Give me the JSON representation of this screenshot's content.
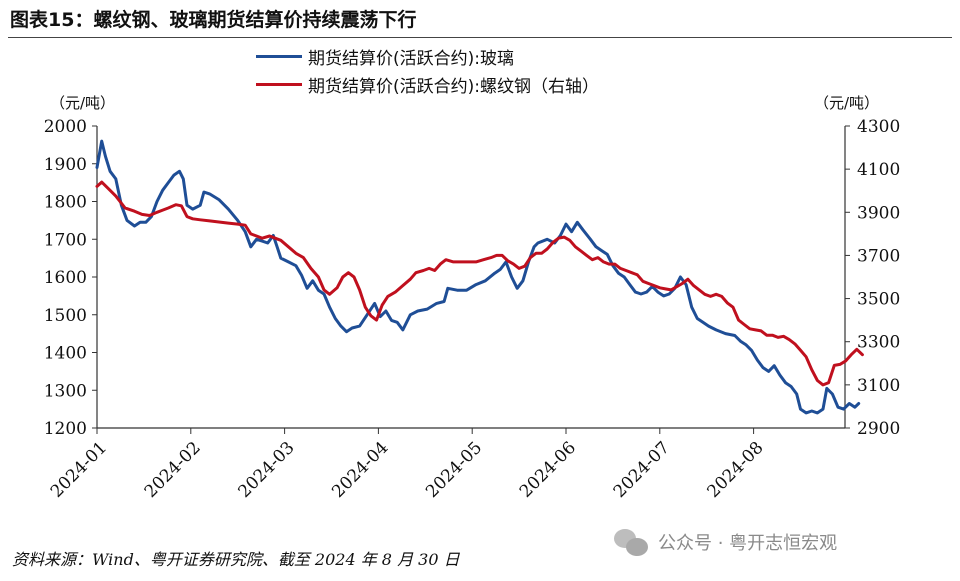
{
  "title": "图表15：螺纹钢、玻璃期货结算价持续震荡下行",
  "legend": {
    "glass": "期货结算价(活跃合约):玻璃",
    "rebar": "期货结算价(活跃合约):螺纹钢（右轴）"
  },
  "units": {
    "left": "（元/吨）",
    "right": "（元/吨）"
  },
  "source": "资料来源：Wind、粤开证券研究院、截至 2024 年 8 月 30 日",
  "watermark": "公众号 · 粤开志恒宏观",
  "colors": {
    "glass": "#1f4e96",
    "rebar": "#c0101e",
    "axis": "#333333"
  },
  "chart_data": {
    "type": "line",
    "x_ticks": [
      "2024-01",
      "2024-02",
      "2024-03",
      "2024-04",
      "2024-05",
      "2024-06",
      "2024-07",
      "2024-08"
    ],
    "x_range_months": [
      0,
      8
    ],
    "y_left": {
      "ticks": [
        1200,
        1300,
        1400,
        1500,
        1600,
        1700,
        1800,
        1900,
        2000
      ],
      "ylim": [
        1200,
        2000
      ]
    },
    "y_right": {
      "ticks": [
        2900,
        3100,
        3300,
        3500,
        3700,
        3900,
        4100,
        4300
      ],
      "ylim": [
        2900,
        4300
      ]
    },
    "series": [
      {
        "name": "期货结算价(活跃合约):玻璃",
        "axis": "left",
        "points": [
          [
            0.0,
            1890
          ],
          [
            0.05,
            1960
          ],
          [
            0.09,
            1920
          ],
          [
            0.14,
            1880
          ],
          [
            0.2,
            1860
          ],
          [
            0.26,
            1790
          ],
          [
            0.32,
            1750
          ],
          [
            0.4,
            1735
          ],
          [
            0.46,
            1745
          ],
          [
            0.52,
            1745
          ],
          [
            0.58,
            1760
          ],
          [
            0.64,
            1800
          ],
          [
            0.7,
            1830
          ],
          [
            0.76,
            1850
          ],
          [
            0.82,
            1870
          ],
          [
            0.88,
            1880
          ],
          [
            0.92,
            1860
          ],
          [
            0.96,
            1790
          ],
          [
            1.02,
            1780
          ],
          [
            1.1,
            1790
          ],
          [
            1.14,
            1825
          ],
          [
            1.2,
            1820
          ],
          [
            1.3,
            1805
          ],
          [
            1.4,
            1780
          ],
          [
            1.5,
            1750
          ],
          [
            1.58,
            1720
          ],
          [
            1.64,
            1680
          ],
          [
            1.7,
            1700
          ],
          [
            1.76,
            1695
          ],
          [
            1.82,
            1690
          ],
          [
            1.88,
            1710
          ],
          [
            1.92,
            1680
          ],
          [
            1.96,
            1650
          ],
          [
            2.04,
            1640
          ],
          [
            2.12,
            1630
          ],
          [
            2.18,
            1605
          ],
          [
            2.24,
            1570
          ],
          [
            2.3,
            1590
          ],
          [
            2.36,
            1565
          ],
          [
            2.42,
            1555
          ],
          [
            2.48,
            1520
          ],
          [
            2.54,
            1490
          ],
          [
            2.6,
            1470
          ],
          [
            2.66,
            1455
          ],
          [
            2.72,
            1465
          ],
          [
            2.8,
            1470
          ],
          [
            2.88,
            1500
          ],
          [
            2.96,
            1530
          ],
          [
            3.02,
            1495
          ],
          [
            3.08,
            1510
          ],
          [
            3.14,
            1485
          ],
          [
            3.2,
            1480
          ],
          [
            3.26,
            1460
          ],
          [
            3.34,
            1500
          ],
          [
            3.42,
            1510
          ],
          [
            3.52,
            1515
          ],
          [
            3.62,
            1530
          ],
          [
            3.7,
            1535
          ],
          [
            3.74,
            1570
          ],
          [
            3.84,
            1565
          ],
          [
            3.94,
            1565
          ],
          [
            4.04,
            1580
          ],
          [
            4.14,
            1590
          ],
          [
            4.24,
            1610
          ],
          [
            4.3,
            1620
          ],
          [
            4.36,
            1640
          ],
          [
            4.42,
            1600
          ],
          [
            4.48,
            1570
          ],
          [
            4.54,
            1590
          ],
          [
            4.6,
            1640
          ],
          [
            4.66,
            1680
          ],
          [
            4.7,
            1690
          ],
          [
            4.8,
            1700
          ],
          [
            4.88,
            1690
          ],
          [
            4.94,
            1710
          ],
          [
            5.0,
            1740
          ],
          [
            5.06,
            1720
          ],
          [
            5.12,
            1745
          ],
          [
            5.18,
            1725
          ],
          [
            5.26,
            1700
          ],
          [
            5.32,
            1680
          ],
          [
            5.38,
            1670
          ],
          [
            5.44,
            1660
          ],
          [
            5.5,
            1630
          ],
          [
            5.56,
            1610
          ],
          [
            5.62,
            1600
          ],
          [
            5.68,
            1580
          ],
          [
            5.74,
            1560
          ],
          [
            5.8,
            1555
          ],
          [
            5.86,
            1560
          ],
          [
            5.92,
            1575
          ],
          [
            5.98,
            1560
          ],
          [
            6.04,
            1550
          ],
          [
            6.1,
            1555
          ],
          [
            6.16,
            1570
          ],
          [
            6.22,
            1600
          ],
          [
            6.28,
            1580
          ],
          [
            6.34,
            1520
          ],
          [
            6.4,
            1490
          ],
          [
            6.46,
            1480
          ],
          [
            6.52,
            1470
          ],
          [
            6.6,
            1460
          ],
          [
            6.7,
            1450
          ],
          [
            6.8,
            1445
          ],
          [
            6.86,
            1430
          ],
          [
            6.92,
            1420
          ],
          [
            6.98,
            1405
          ],
          [
            7.04,
            1380
          ],
          [
            7.1,
            1360
          ],
          [
            7.16,
            1350
          ],
          [
            7.22,
            1365
          ],
          [
            7.28,
            1340
          ],
          [
            7.34,
            1320
          ],
          [
            7.4,
            1310
          ],
          [
            7.46,
            1290
          ],
          [
            7.5,
            1250
          ],
          [
            7.56,
            1240
          ],
          [
            7.62,
            1245
          ],
          [
            7.68,
            1240
          ],
          [
            7.74,
            1250
          ],
          [
            7.78,
            1305
          ],
          [
            7.84,
            1290
          ],
          [
            7.9,
            1255
          ],
          [
            7.96,
            1250
          ],
          [
            8.02,
            1265
          ],
          [
            8.08,
            1255
          ],
          [
            8.12,
            1265
          ]
        ]
      },
      {
        "name": "期货结算价(活跃合约):螺纹钢（右轴）",
        "axis": "right",
        "points": [
          [
            0.0,
            4020
          ],
          [
            0.05,
            4040
          ],
          [
            0.12,
            4010
          ],
          [
            0.2,
            3975
          ],
          [
            0.3,
            3920
          ],
          [
            0.4,
            3905
          ],
          [
            0.48,
            3890
          ],
          [
            0.56,
            3885
          ],
          [
            0.64,
            3900
          ],
          [
            0.7,
            3910
          ],
          [
            0.76,
            3920
          ],
          [
            0.84,
            3935
          ],
          [
            0.9,
            3930
          ],
          [
            0.96,
            3880
          ],
          [
            1.02,
            3870
          ],
          [
            1.1,
            3865
          ],
          [
            1.2,
            3860
          ],
          [
            1.3,
            3855
          ],
          [
            1.4,
            3850
          ],
          [
            1.5,
            3845
          ],
          [
            1.58,
            3840
          ],
          [
            1.64,
            3800
          ],
          [
            1.7,
            3790
          ],
          [
            1.76,
            3780
          ],
          [
            1.84,
            3790
          ],
          [
            1.9,
            3780
          ],
          [
            1.96,
            3770
          ],
          [
            2.04,
            3740
          ],
          [
            2.12,
            3710
          ],
          [
            2.2,
            3690
          ],
          [
            2.28,
            3640
          ],
          [
            2.36,
            3600
          ],
          [
            2.42,
            3540
          ],
          [
            2.48,
            3520
          ],
          [
            2.56,
            3550
          ],
          [
            2.62,
            3600
          ],
          [
            2.68,
            3620
          ],
          [
            2.74,
            3600
          ],
          [
            2.8,
            3540
          ],
          [
            2.86,
            3460
          ],
          [
            2.92,
            3420
          ],
          [
            2.98,
            3400
          ],
          [
            3.04,
            3470
          ],
          [
            3.1,
            3510
          ],
          [
            3.18,
            3530
          ],
          [
            3.26,
            3560
          ],
          [
            3.34,
            3590
          ],
          [
            3.4,
            3620
          ],
          [
            3.48,
            3630
          ],
          [
            3.54,
            3640
          ],
          [
            3.6,
            3630
          ],
          [
            3.66,
            3660
          ],
          [
            3.72,
            3680
          ],
          [
            3.8,
            3670
          ],
          [
            3.88,
            3670
          ],
          [
            3.96,
            3670
          ],
          [
            4.04,
            3670
          ],
          [
            4.12,
            3680
          ],
          [
            4.2,
            3690
          ],
          [
            4.26,
            3700
          ],
          [
            4.32,
            3700
          ],
          [
            4.38,
            3675
          ],
          [
            4.44,
            3660
          ],
          [
            4.5,
            3640
          ],
          [
            4.56,
            3650
          ],
          [
            4.62,
            3690
          ],
          [
            4.68,
            3710
          ],
          [
            4.74,
            3710
          ],
          [
            4.8,
            3730
          ],
          [
            4.86,
            3760
          ],
          [
            4.92,
            3780
          ],
          [
            4.98,
            3785
          ],
          [
            5.04,
            3770
          ],
          [
            5.1,
            3740
          ],
          [
            5.16,
            3720
          ],
          [
            5.22,
            3700
          ],
          [
            5.28,
            3680
          ],
          [
            5.34,
            3690
          ],
          [
            5.4,
            3670
          ],
          [
            5.46,
            3660
          ],
          [
            5.52,
            3660
          ],
          [
            5.58,
            3640
          ],
          [
            5.64,
            3630
          ],
          [
            5.7,
            3620
          ],
          [
            5.76,
            3610
          ],
          [
            5.82,
            3580
          ],
          [
            5.88,
            3570
          ],
          [
            5.94,
            3560
          ],
          [
            6.0,
            3550
          ],
          [
            6.06,
            3545
          ],
          [
            6.12,
            3540
          ],
          [
            6.18,
            3555
          ],
          [
            6.24,
            3570
          ],
          [
            6.3,
            3590
          ],
          [
            6.36,
            3560
          ],
          [
            6.42,
            3540
          ],
          [
            6.48,
            3520
          ],
          [
            6.54,
            3510
          ],
          [
            6.6,
            3520
          ],
          [
            6.66,
            3510
          ],
          [
            6.72,
            3480
          ],
          [
            6.78,
            3460
          ],
          [
            6.84,
            3400
          ],
          [
            6.9,
            3380
          ],
          [
            6.96,
            3360
          ],
          [
            7.02,
            3355
          ],
          [
            7.08,
            3350
          ],
          [
            7.14,
            3330
          ],
          [
            7.2,
            3330
          ],
          [
            7.26,
            3320
          ],
          [
            7.32,
            3325
          ],
          [
            7.38,
            3310
          ],
          [
            7.44,
            3290
          ],
          [
            7.5,
            3260
          ],
          [
            7.56,
            3230
          ],
          [
            7.62,
            3170
          ],
          [
            7.68,
            3120
          ],
          [
            7.74,
            3100
          ],
          [
            7.8,
            3110
          ],
          [
            7.86,
            3190
          ],
          [
            7.92,
            3195
          ],
          [
            7.98,
            3210
          ],
          [
            8.04,
            3240
          ],
          [
            8.1,
            3265
          ],
          [
            8.16,
            3240
          ]
        ]
      }
    ]
  }
}
